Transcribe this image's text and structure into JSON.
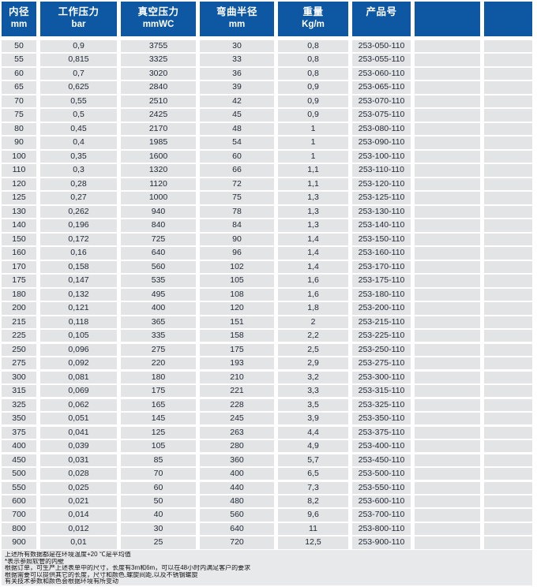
{
  "colors": {
    "header_blue": "#0e58a3",
    "row_fill": "#e3e4e6",
    "footer_fill": "#e8e9eb",
    "body_text": "#1f2733",
    "header_text": "#ffffff"
  },
  "table": {
    "headers": [
      {
        "title": "内径",
        "unit": "mm"
      },
      {
        "title": "工作压力",
        "unit": "bar"
      },
      {
        "title": "真空压力",
        "unit": "mmWC"
      },
      {
        "title": "弯曲半径",
        "unit": "mm"
      },
      {
        "title": "重量",
        "unit": "Kg/m"
      },
      {
        "title": "产品号",
        "unit": ""
      },
      {
        "title": "",
        "unit": ""
      },
      {
        "title": "",
        "unit": ""
      }
    ],
    "rows": [
      [
        "50",
        "0,9",
        "3755",
        "30",
        "0,8",
        "253-050-110",
        "",
        ""
      ],
      [
        "55",
        "0,815",
        "3325",
        "33",
        "0,8",
        "253-055-110",
        "",
        ""
      ],
      [
        "60",
        "0,7",
        "3020",
        "36",
        "0,8",
        "253-060-110",
        "",
        ""
      ],
      [
        "65",
        "0,625",
        "2840",
        "39",
        "0,9",
        "253-065-110",
        "",
        ""
      ],
      [
        "70",
        "0,55",
        "2510",
        "42",
        "0,9",
        "253-070-110",
        "",
        ""
      ],
      [
        "75",
        "0,5",
        "2425",
        "45",
        "0,9",
        "253-075-110",
        "",
        ""
      ],
      [
        "80",
        "0,45",
        "2170",
        "48",
        "1",
        "253-080-110",
        "",
        ""
      ],
      [
        "90",
        "0,4",
        "1985",
        "54",
        "1",
        "253-090-110",
        "",
        ""
      ],
      [
        "100",
        "0,35",
        "1600",
        "60",
        "1",
        "253-100-110",
        "",
        ""
      ],
      [
        "110",
        "0,3",
        "1320",
        "66",
        "1,1",
        "253-110-110",
        "",
        ""
      ],
      [
        "120",
        "0,28",
        "1120",
        "72",
        "1,1",
        "253-120-110",
        "",
        ""
      ],
      [
        "125",
        "0,27",
        "1000",
        "75",
        "1,3",
        "253-125-110",
        "",
        ""
      ],
      [
        "130",
        "0,262",
        "940",
        "78",
        "1,3",
        "253-130-110",
        "",
        ""
      ],
      [
        "140",
        "0,196",
        "840",
        "84",
        "1,3",
        "253-140-110",
        "",
        ""
      ],
      [
        "150",
        "0,172",
        "725",
        "90",
        "1,4",
        "253-150-110",
        "",
        ""
      ],
      [
        "160",
        "0,16",
        "640",
        "96",
        "1,4",
        "253-160-110",
        "",
        ""
      ],
      [
        "170",
        "0,158",
        "560",
        "102",
        "1,4",
        "253-170-110",
        "",
        ""
      ],
      [
        "175",
        "0,147",
        "535",
        "105",
        "1,6",
        "253-175-110",
        "",
        ""
      ],
      [
        "180",
        "0,132",
        "495",
        "108",
        "1,6",
        "253-180-110",
        "",
        ""
      ],
      [
        "200",
        "0,121",
        "400",
        "120",
        "1,8",
        "253-200-110",
        "",
        ""
      ],
      [
        "215",
        "0,118",
        "365",
        "151",
        "2",
        "253-215-110",
        "",
        ""
      ],
      [
        "225",
        "0,105",
        "335",
        "158",
        "2,2",
        "253-225-110",
        "",
        ""
      ],
      [
        "250",
        "0,096",
        "275",
        "175",
        "2,5",
        "253-250-110",
        "",
        ""
      ],
      [
        "275",
        "0,092",
        "220",
        "193",
        "2,9",
        "253-275-110",
        "",
        ""
      ],
      [
        "300",
        "0,081",
        "180",
        "210",
        "3,2",
        "253-300-110",
        "",
        ""
      ],
      [
        "315",
        "0,069",
        "175",
        "221",
        "3,3",
        "253-315-110",
        "",
        ""
      ],
      [
        "325",
        "0,062",
        "165",
        "228",
        "3,5",
        "253-325-110",
        "",
        ""
      ],
      [
        "350",
        "0,051",
        "145",
        "245",
        "3,9",
        "253-350-110",
        "",
        ""
      ],
      [
        "375",
        "0,041",
        "125",
        "263",
        "4,4",
        "253-375-110",
        "",
        ""
      ],
      [
        "400",
        "0,039",
        "105",
        "280",
        "4,9",
        "253-400-110",
        "",
        ""
      ],
      [
        "450",
        "0,031",
        "85",
        "360",
        "5,7",
        "253-450-110",
        "",
        ""
      ],
      [
        "500",
        "0,028",
        "70",
        "400",
        "6,5",
        "253-500-110",
        "",
        ""
      ],
      [
        "550",
        "0,025",
        "60",
        "440",
        "7,3",
        "253-550-110",
        "",
        ""
      ],
      [
        "600",
        "0,021",
        "50",
        "480",
        "8,2",
        "253-600-110",
        "",
        ""
      ],
      [
        "700",
        "0,014",
        "40",
        "560",
        "9,6",
        "253-700-110",
        "",
        ""
      ],
      [
        "800",
        "0,012",
        "30",
        "640",
        "11",
        "253-800-110",
        "",
        ""
      ],
      [
        "900",
        "0,01",
        "25",
        "720",
        "12,5",
        "253-900-110",
        "",
        ""
      ]
    ]
  },
  "footnotes": {
    "lines": [
      "上述所有数据都是在环境温度+20 ℃是平均值",
      "*表示参照软管的内壁",
      "根据订单，可生产上述表单中的尺寸，长度有3m和6m，可以在48小时内满足客户的要求",
      "根据需要可以提供其它的长度，尺寸和颜色,螺旋间距,以及不锈钢螺旋",
      "有关技术参数和颜色会根据环境有所变动"
    ]
  }
}
